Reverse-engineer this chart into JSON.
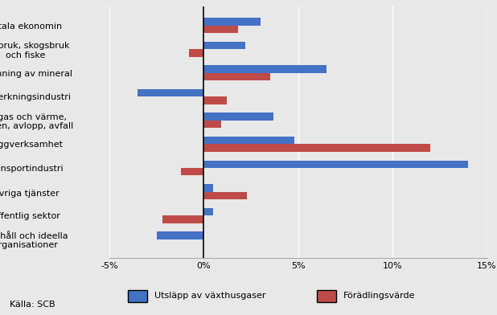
{
  "categories": [
    "Totala ekonomin",
    "Jordbruk, skogsbruk\noch fiske",
    "Utvinning av mineral",
    "Tillverkningsindustri",
    "El, gas och värme,\nvatten, avlopp, avfall",
    "Byggverksamhet",
    "Transportindustri",
    "Övriga tjänster",
    "Offentlig sektor",
    "Hushåll och ideella\norganisationer"
  ],
  "utsläpp": [
    3.0,
    2.2,
    6.5,
    -3.5,
    3.7,
    4.8,
    14.0,
    0.5,
    0.5,
    -2.5
  ],
  "förädling": [
    1.8,
    -0.8,
    3.5,
    1.2,
    0.9,
    12.0,
    -1.2,
    2.3,
    -2.2,
    0.0
  ],
  "color_utsläpp": "#4472C4",
  "color_förädling": "#BE4B48",
  "background_color": "#E8E8E8",
  "fig_background": "#E8E8E8",
  "xlim": [
    -5,
    15
  ],
  "xticks": [
    -5,
    0,
    5,
    10,
    15
  ],
  "xticklabels": [
    "-5%",
    "0%",
    "5%",
    "10%",
    "15%"
  ],
  "legend_label_1": "Utsläpp av växthusgaser",
  "legend_label_2": "Förädlingsvärde",
  "source_text": "Källa: SCB",
  "bar_height": 0.32,
  "fontsize_ticks": 8,
  "fontsize_yticks": 8,
  "fontsize_legend": 8,
  "fontsize_source": 8
}
